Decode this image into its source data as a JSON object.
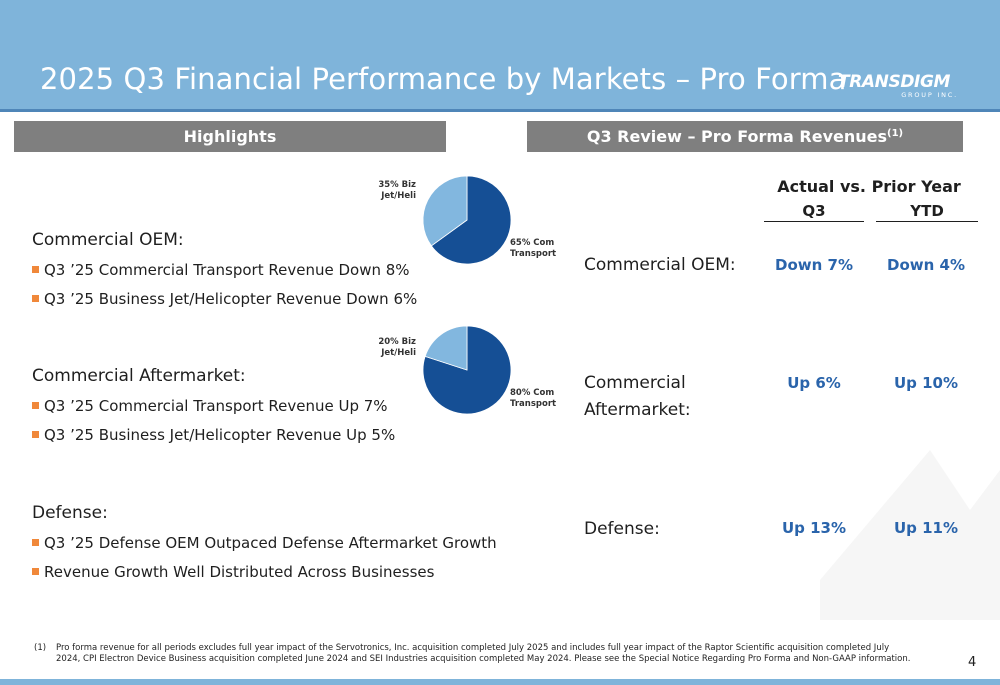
{
  "header": {
    "title": "2025 Q3 Financial Performance by Markets – Pro Forma",
    "logo": {
      "main": "TRANSDIGM",
      "sub": "GROUP INC."
    }
  },
  "highlights": {
    "bar_label": "Highlights",
    "groups": [
      {
        "title": "Commercial OEM:",
        "bullets": [
          "Q3 ’25 Commercial Transport Revenue Down 8%",
          "Q3 ’25 Business Jet/Helicopter Revenue Down 6%"
        ],
        "pie": {
          "type": "pie",
          "slices": [
            {
              "label_line1": "65% Com",
              "label_line2": "Transport",
              "value": 65,
              "color": "#154f95"
            },
            {
              "label_line1": "35% Biz",
              "label_line2": "Jet/Heli",
              "value": 35,
              "color": "#82b7df"
            }
          ]
        }
      },
      {
        "title": "Commercial Aftermarket:",
        "bullets": [
          "Q3 ’25 Commercial Transport Revenue Up 7%",
          "Q3 ’25 Business Jet/Helicopter Revenue Up 5%"
        ],
        "pie": {
          "type": "pie",
          "slices": [
            {
              "label_line1": "80% Com",
              "label_line2": "Transport",
              "value": 80,
              "color": "#154f95"
            },
            {
              "label_line1": "20% Biz",
              "label_line2": "Jet/Heli",
              "value": 20,
              "color": "#82b7df"
            }
          ]
        }
      },
      {
        "title": "Defense:",
        "bullets": [
          "Q3 ’25 Defense OEM Outpaced Defense Aftermarket Growth",
          "Revenue Growth Well Distributed Across Businesses"
        ]
      }
    ]
  },
  "review": {
    "bar_label": "Q3 Review – Pro Forma Revenues",
    "bar_sup": "(1)",
    "columns_title": "Actual vs. Prior Year",
    "columns": [
      "Q3",
      "YTD"
    ],
    "rows": [
      {
        "label_line1": "Commercial OEM:",
        "label_line2": "",
        "q3": "Down 7%",
        "ytd": "Down 4%"
      },
      {
        "label_line1": "Commercial",
        "label_line2": "Aftermarket:",
        "q3": "Up 6%",
        "ytd": "Up 10%"
      },
      {
        "label_line1": "Defense:",
        "label_line2": "",
        "q3": "Up 13%",
        "ytd": "Up 11%"
      }
    ]
  },
  "footnote": {
    "marker": "(1)",
    "text": "Pro forma revenue for all periods excludes full year impact of the Servotronics, Inc. acquisition completed July 2025 and includes full year impact of the Raptor Scientific acquisition completed July 2024, CPI Electron Device Business acquisition completed June 2024 and SEI Industries acquisition completed May 2024. Please see the Special Notice Regarding Pro Forma and Non-GAAP information."
  },
  "page_number": "4",
  "colors": {
    "header": "#7fb4da",
    "section_bar": "#7f7f7f",
    "bullet": "#f0883a",
    "value_text": "#2a64ab",
    "pie_dark": "#154f95",
    "pie_light": "#82b7df"
  },
  "chart_data": [
    {
      "type": "pie",
      "categories": [
        "Com Transport",
        "Biz Jet/Heli"
      ],
      "values": [
        65,
        35
      ]
    },
    {
      "type": "pie",
      "categories": [
        "Com Transport",
        "Biz Jet/Heli"
      ],
      "values": [
        80,
        20
      ]
    }
  ]
}
